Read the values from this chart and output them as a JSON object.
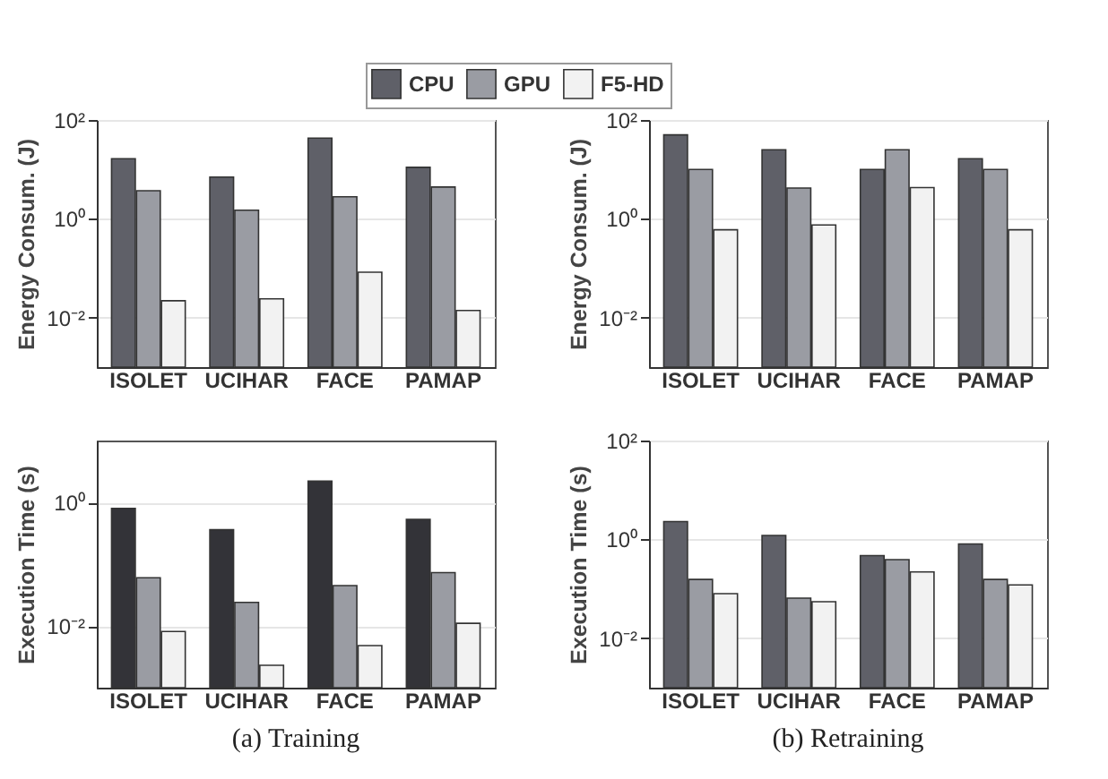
{
  "chart_data": [
    {
      "type": "bar",
      "ylabel": "Energy Consum. (J)",
      "categories": [
        "ISOLET",
        "UCIHAR",
        "FACE",
        "PAMAP"
      ],
      "log": true,
      "grid": "y",
      "legend": "top",
      "ylim": [
        0.001,
        100
      ],
      "yticks": [
        {
          "value": 100,
          "label": "10²"
        },
        {
          "value": 1,
          "label": "10⁰"
        },
        {
          "value": 0.01,
          "label": "10⁻²"
        }
      ],
      "series": [
        {
          "name": "CPU",
          "color": "#5f6068",
          "values": [
            16.5,
            7,
            43,
            11
          ]
        },
        {
          "name": "GPU",
          "color": "#9a9ca3",
          "values": [
            3.7,
            1.5,
            2.8,
            4.4
          ]
        },
        {
          "name": "F5-HD",
          "color": "#f2f2f2",
          "values": [
            0.022,
            0.024,
            0.083,
            0.014
          ]
        }
      ]
    },
    {
      "type": "bar",
      "ylabel": "Energy Consum. (J)",
      "categories": [
        "ISOLET",
        "UCIHAR",
        "FACE",
        "PAMAP"
      ],
      "log": true,
      "grid": "y",
      "ylim": [
        0.001,
        100
      ],
      "yticks": [
        {
          "value": 100,
          "label": "10²"
        },
        {
          "value": 1,
          "label": "10⁰"
        },
        {
          "value": 0.01,
          "label": "10⁻²"
        }
      ],
      "series": [
        {
          "color": "#5f6068",
          "values": [
            50,
            25,
            10,
            16.5
          ]
        },
        {
          "color": "#9a9ca3",
          "values": [
            10,
            4.2,
            25,
            10
          ]
        },
        {
          "color": "#f2f2f2",
          "values": [
            0.6,
            0.75,
            4.3,
            0.6
          ]
        }
      ]
    },
    {
      "type": "bar",
      "ylabel": "Execution Time (s)",
      "annotations": [
        "(a)  Training"
      ],
      "categories": [
        "ISOLET",
        "UCIHAR",
        "FACE",
        "PAMAP"
      ],
      "log": true,
      "grid": "y",
      "ylim": [
        0.001,
        10
      ],
      "yticks": [
        {
          "value": 1,
          "label": "10⁰"
        },
        {
          "value": 0.01,
          "label": "10⁻²"
        }
      ],
      "series": [
        {
          "color": "#333338",
          "values": [
            0.8,
            0.36,
            2.2,
            0.53
          ]
        },
        {
          "color": "#9a9ca3",
          "values": [
            0.06,
            0.024,
            0.045,
            0.073
          ]
        },
        {
          "color": "#f2f2f2",
          "values": [
            0.0081,
            0.0023,
            0.0048,
            0.011
          ]
        }
      ]
    },
    {
      "type": "bar",
      "ylabel": "Execution Time (s)",
      "annotations": [
        "(b)  Retraining"
      ],
      "categories": [
        "ISOLET",
        "UCIHAR",
        "FACE",
        "PAMAP"
      ],
      "log": true,
      "grid": "y",
      "ylim": [
        0.001,
        100
      ],
      "yticks": [
        {
          "value": 100,
          "label": "10²"
        },
        {
          "value": 1,
          "label": "10⁰"
        },
        {
          "value": 0.01,
          "label": "10⁻²"
        }
      ],
      "series": [
        {
          "color": "#5f6068",
          "values": [
            2.3,
            1.2,
            0.47,
            0.81
          ]
        },
        {
          "color": "#9a9ca3",
          "values": [
            0.155,
            0.065,
            0.39,
            0.155
          ]
        },
        {
          "color": "#f2f2f2",
          "values": [
            0.08,
            0.055,
            0.22,
            0.12
          ]
        }
      ]
    }
  ]
}
